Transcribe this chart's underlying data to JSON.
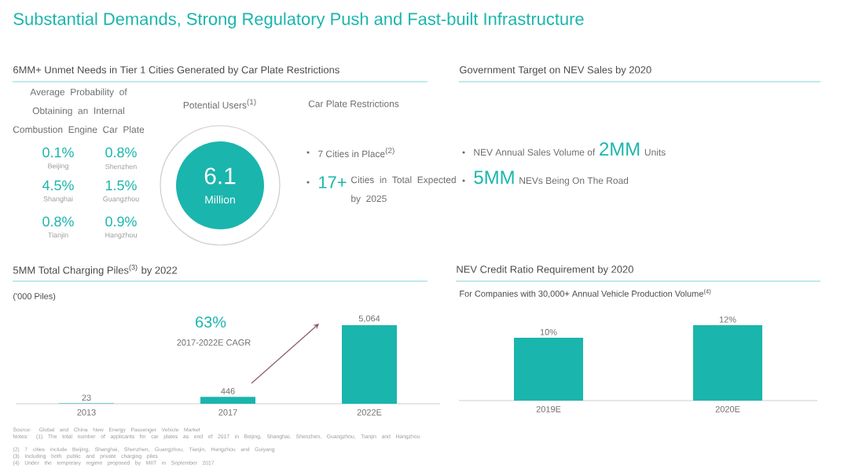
{
  "chart_data": [
    {
      "type": "other",
      "title": "Substantial Demands, Strong Regulatory Push and Fast-built Infrastructure",
      "subtitle": "6MM+ Unmet Needs in Tier 1 Cities Generated by Car Plate Restrictions",
      "annotations": [
        "Average Probability of Obtaining an Internal Combustion Engine Car Plate",
        "0.1%",
        "Beijing",
        "0.8%",
        "Shenzhen",
        "4.5%",
        "Shanghai",
        "1.5%",
        "Guangzhou",
        "0.8%",
        "Tianjin",
        "0.9%",
        "Hangzhou",
        "Potential Users$^{(1)}$",
        "6.1",
        "Million",
        "Car Plate Restrictions",
        "7 Cities in Place$^{(2)}$",
        "17+",
        "Cities in Total Expected by 2025"
      ]
    },
    {
      "type": "other",
      "title": "Government Target on NEV Sales by 2020",
      "annotations": [
        "NEV Annual Sales Volume of",
        "2MM",
        "Units",
        "5MM",
        "NEVs Being On The Road"
      ]
    },
    {
      "type": "bar",
      "title": "5MM Total Charging Piles$^{(3)}$ by 2022",
      "ylabel": "('000 Piles)",
      "categories": [
        "2013",
        "2017",
        "2022E"
      ],
      "values": [
        23,
        446,
        5064
      ],
      "value_labels": [
        "23",
        "446",
        "5,064"
      ],
      "color": "#1ab5ad",
      "annotations": [
        "63%",
        "2017-2022E CAGR",
        "Source: Global and China New Energy Passenger Vehicle Market",
        "Notes: (1) The total number of applicants for car plates as end of 2017 in Beijing, Shanghai, Shenzhen, Guangzhou, Tianjin and Hangzhou",
        "(2) 7 cities include Beijing, Shanghai, Shenzhen, Guangzhou, Tianjin, Hangzhou and Guiyang",
        "(3) Including both public and private charging piles",
        "(4) Under the temporary regime proposed by MIIT in September 2017"
      ]
    },
    {
      "type": "bar",
      "title": "NEV Credit Ratio Requirement by 2020",
      "subtitle": "For Companies with 30,000+ Annual Vehicle Production Volume$^{(4)}$",
      "categories": [
        "2019E",
        "2020E"
      ],
      "values": [
        10,
        12
      ],
      "value_labels": [
        "10%",
        "12%"
      ],
      "color": "#1ab5ad"
    }
  ]
}
